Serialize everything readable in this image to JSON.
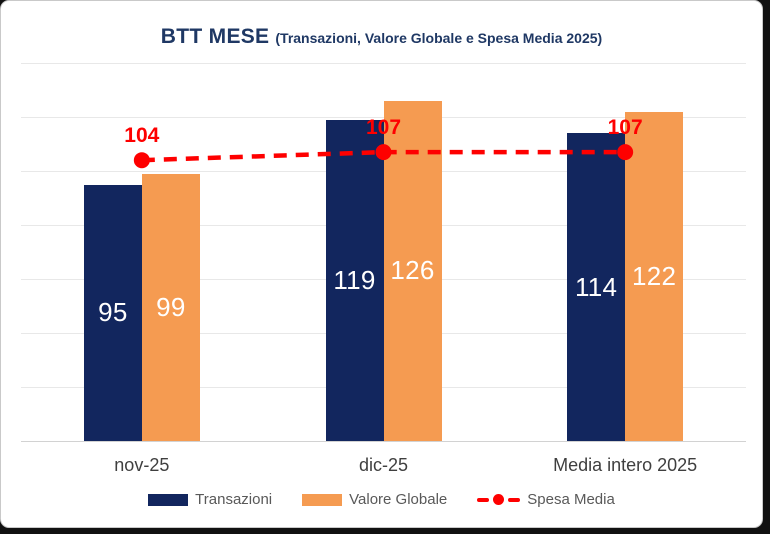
{
  "title": "BTT MESE",
  "subtitle": "(Transazioni, Valore Globale e Spesa Media 2025)",
  "colors": {
    "title": "#1f3864",
    "bar_transazioni": "#12265e",
    "bar_valore_globale": "#f59b51",
    "line_spesa_media": "#fe0000",
    "bar_value_label": "#ffffff",
    "gridline": "#e8e8e8",
    "axis_label": "#3f3f3f",
    "legend_text": "#595959"
  },
  "chart_data": {
    "type": "bar",
    "categories": [
      "nov-25",
      "dic-25",
      "Media intero 2025"
    ],
    "series": [
      {
        "name": "Transazioni",
        "type": "bar",
        "color": "#12265e",
        "values": [
          95,
          119,
          114
        ]
      },
      {
        "name": "Valore Globale",
        "type": "bar",
        "color": "#f59b51",
        "values": [
          99,
          126,
          122
        ]
      },
      {
        "name": "Spesa Media",
        "type": "line",
        "color": "#fe0000",
        "values": [
          104,
          107,
          107
        ]
      }
    ],
    "title": "BTT MESE (Transazioni, Valore Globale e Spesa Media 2025)",
    "xlabel": "",
    "ylabel": "",
    "ylim": [
      0,
      140
    ],
    "grid_step": 20,
    "grid": true,
    "y_axis_labels_visible": false,
    "legend_position": "bottom",
    "data_labels": "center",
    "line_style": "dashed"
  }
}
